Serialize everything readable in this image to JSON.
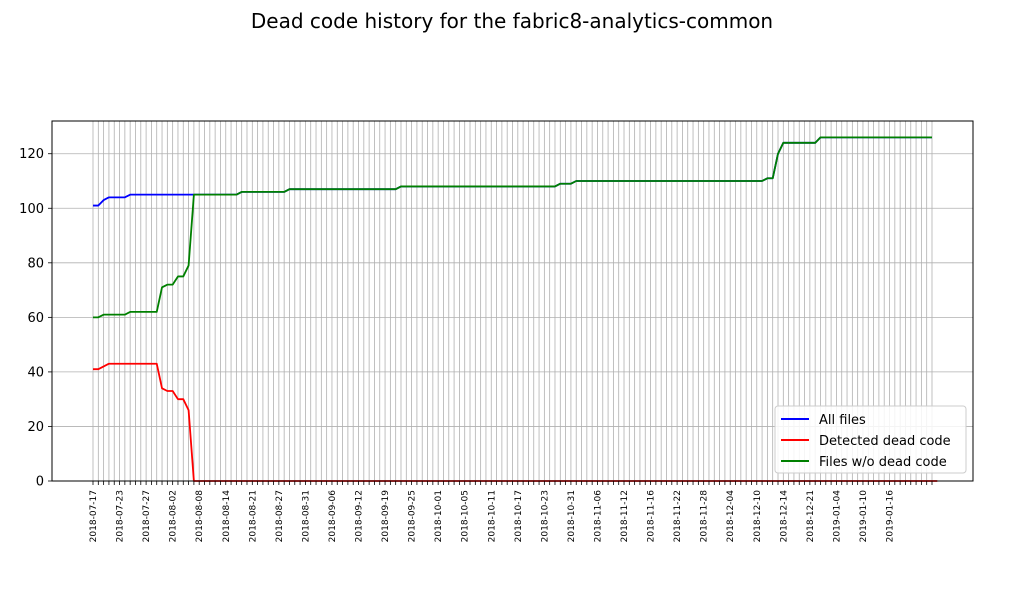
{
  "chart_data": {
    "type": "line",
    "title": "Dead code history for the fabric8-analytics-common",
    "xlabel": "",
    "ylabel": "",
    "ylim": [
      0,
      132
    ],
    "yticks": [
      0,
      20,
      40,
      60,
      80,
      100,
      120
    ],
    "grid": true,
    "legend_position": "lower-right",
    "x_tick_labels": [
      "2018-07-17",
      "2018-07-23",
      "2018-07-27",
      "2018-08-02",
      "2018-08-08",
      "2018-08-14",
      "2018-08-21",
      "2018-08-27",
      "2018-08-31",
      "2018-09-06",
      "2018-09-12",
      "2018-09-19",
      "2018-09-25",
      "2018-10-01",
      "2018-10-05",
      "2018-10-11",
      "2018-10-17",
      "2018-10-23",
      "2018-10-31",
      "2018-11-06",
      "2018-11-12",
      "2018-11-16",
      "2018-11-22",
      "2018-11-28",
      "2018-12-04",
      "2018-12-10",
      "2018-12-14",
      "2018-12-21",
      "2019-01-04",
      "2019-01-10",
      "2019-01-16"
    ],
    "series": [
      {
        "name": "All files",
        "color": "#0000ff",
        "values": [
          101,
          101,
          103,
          104,
          104,
          104,
          104,
          105,
          105,
          105,
          105,
          105,
          105,
          105,
          105,
          105,
          105,
          105,
          105,
          105,
          105,
          105,
          105,
          105,
          105,
          105,
          105,
          105,
          106,
          106,
          106,
          106,
          106,
          106,
          106,
          106,
          106,
          107,
          107,
          107,
          107,
          107,
          107,
          107,
          107,
          107,
          107,
          107,
          107,
          107,
          107,
          107,
          107,
          107,
          107,
          107,
          107,
          107,
          108,
          108,
          108,
          108,
          108,
          108,
          108,
          108,
          108,
          108,
          108,
          108,
          108,
          108,
          108,
          108,
          108,
          108,
          108,
          108,
          108,
          108,
          108,
          108,
          108,
          108,
          108,
          108,
          108,
          108,
          109,
          109,
          109,
          110,
          110,
          110,
          110,
          110,
          110,
          110,
          110,
          110,
          110,
          110,
          110,
          110,
          110,
          110,
          110,
          110,
          110,
          110,
          110,
          110,
          110,
          110,
          110,
          110,
          110,
          110,
          110,
          110,
          110,
          110,
          110,
          110,
          110,
          110,
          110,
          111,
          111,
          120,
          124,
          124,
          124,
          124,
          124,
          124,
          124,
          126,
          126,
          126,
          126,
          126,
          126,
          126,
          126,
          126,
          126,
          126,
          126,
          126,
          126,
          126,
          126,
          126,
          126,
          126,
          126,
          126,
          126
        ]
      },
      {
        "name": "Detected dead code",
        "color": "#ff0000",
        "values": [
          41,
          41,
          42,
          43,
          43,
          43,
          43,
          43,
          43,
          43,
          43,
          43,
          43,
          34,
          33,
          33,
          30,
          30,
          26,
          0,
          0,
          0,
          0,
          0,
          0,
          0,
          0,
          0,
          0,
          0,
          0,
          0,
          0,
          0,
          0,
          0,
          0,
          0,
          0,
          0,
          0,
          0,
          0,
          0,
          0,
          0,
          0,
          0,
          0,
          0,
          0,
          0,
          0,
          0,
          0,
          0,
          0,
          0,
          0,
          0,
          0,
          0,
          0,
          0,
          0,
          0,
          0,
          0,
          0,
          0,
          0,
          0,
          0,
          0,
          0,
          0,
          0,
          0,
          0,
          0,
          0,
          0,
          0,
          0,
          0,
          0,
          0,
          0,
          0,
          0,
          0,
          0,
          0,
          0,
          0,
          0,
          0,
          0,
          0,
          0,
          0,
          0,
          0,
          0,
          0,
          0,
          0,
          0,
          0,
          0,
          0,
          0,
          0,
          0,
          0,
          0,
          0,
          0,
          0,
          0,
          0,
          0,
          0,
          0,
          0,
          0,
          0,
          0,
          0,
          0,
          0,
          0,
          0,
          0,
          0,
          0,
          0,
          0,
          0,
          0,
          0,
          0,
          0,
          0,
          0,
          0,
          0,
          0,
          0,
          0,
          0,
          0,
          0,
          0,
          0,
          0,
          0,
          0,
          0,
          0
        ]
      },
      {
        "name": "Files w/o dead code",
        "color": "#008000",
        "values": [
          60,
          60,
          61,
          61,
          61,
          61,
          61,
          62,
          62,
          62,
          62,
          62,
          62,
          71,
          72,
          72,
          75,
          75,
          79,
          105,
          105,
          105,
          105,
          105,
          105,
          105,
          105,
          105,
          106,
          106,
          106,
          106,
          106,
          106,
          106,
          106,
          106,
          107,
          107,
          107,
          107,
          107,
          107,
          107,
          107,
          107,
          107,
          107,
          107,
          107,
          107,
          107,
          107,
          107,
          107,
          107,
          107,
          107,
          108,
          108,
          108,
          108,
          108,
          108,
          108,
          108,
          108,
          108,
          108,
          108,
          108,
          108,
          108,
          108,
          108,
          108,
          108,
          108,
          108,
          108,
          108,
          108,
          108,
          108,
          108,
          108,
          108,
          108,
          109,
          109,
          109,
          110,
          110,
          110,
          110,
          110,
          110,
          110,
          110,
          110,
          110,
          110,
          110,
          110,
          110,
          110,
          110,
          110,
          110,
          110,
          110,
          110,
          110,
          110,
          110,
          110,
          110,
          110,
          110,
          110,
          110,
          110,
          110,
          110,
          110,
          110,
          110,
          111,
          111,
          120,
          124,
          124,
          124,
          124,
          124,
          124,
          124,
          126,
          126,
          126,
          126,
          126,
          126,
          126,
          126,
          126,
          126,
          126,
          126,
          126,
          126,
          126,
          126,
          126,
          126,
          126,
          126,
          126,
          126
        ]
      }
    ]
  }
}
